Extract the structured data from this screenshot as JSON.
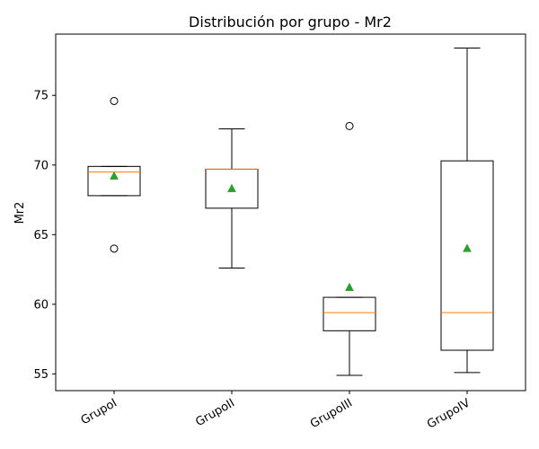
{
  "chart_data": {
    "type": "box",
    "title": "Distribución por grupo - Mr2",
    "xlabel": "",
    "ylabel": "Mr2",
    "ylim": [
      53.8,
      79.4
    ],
    "yticks": [
      55,
      60,
      65,
      70,
      75
    ],
    "categories": [
      "GrupoI",
      "GrupoII",
      "GrupoIII",
      "GrupoIV"
    ],
    "boxes": [
      {
        "category": "GrupoI",
        "whisker_low": 67.8,
        "q1": 67.8,
        "median": 69.5,
        "q3": 69.9,
        "whisker_high": 69.9,
        "mean": 69.2,
        "outliers": [
          74.6,
          64.0
        ]
      },
      {
        "category": "GrupoII",
        "whisker_low": 62.6,
        "q1": 66.9,
        "median": 69.7,
        "q3": 69.7,
        "whisker_high": 72.6,
        "mean": 68.3,
        "outliers": []
      },
      {
        "category": "GrupoIII",
        "whisker_low": 54.9,
        "q1": 58.1,
        "median": 59.4,
        "q3": 60.5,
        "whisker_high": 60.5,
        "mean": 61.2,
        "outliers": [
          72.8
        ]
      },
      {
        "category": "GrupoIV",
        "whisker_low": 55.1,
        "q1": 56.7,
        "median": 59.4,
        "q3": 70.3,
        "whisker_high": 78.4,
        "mean": 64.0,
        "outliers": []
      }
    ],
    "grid": false,
    "legend": "none",
    "colors": {
      "box": "#000000",
      "median": "#ff7f0e",
      "mean": "#2ca02c",
      "outlier": "#000000"
    }
  }
}
